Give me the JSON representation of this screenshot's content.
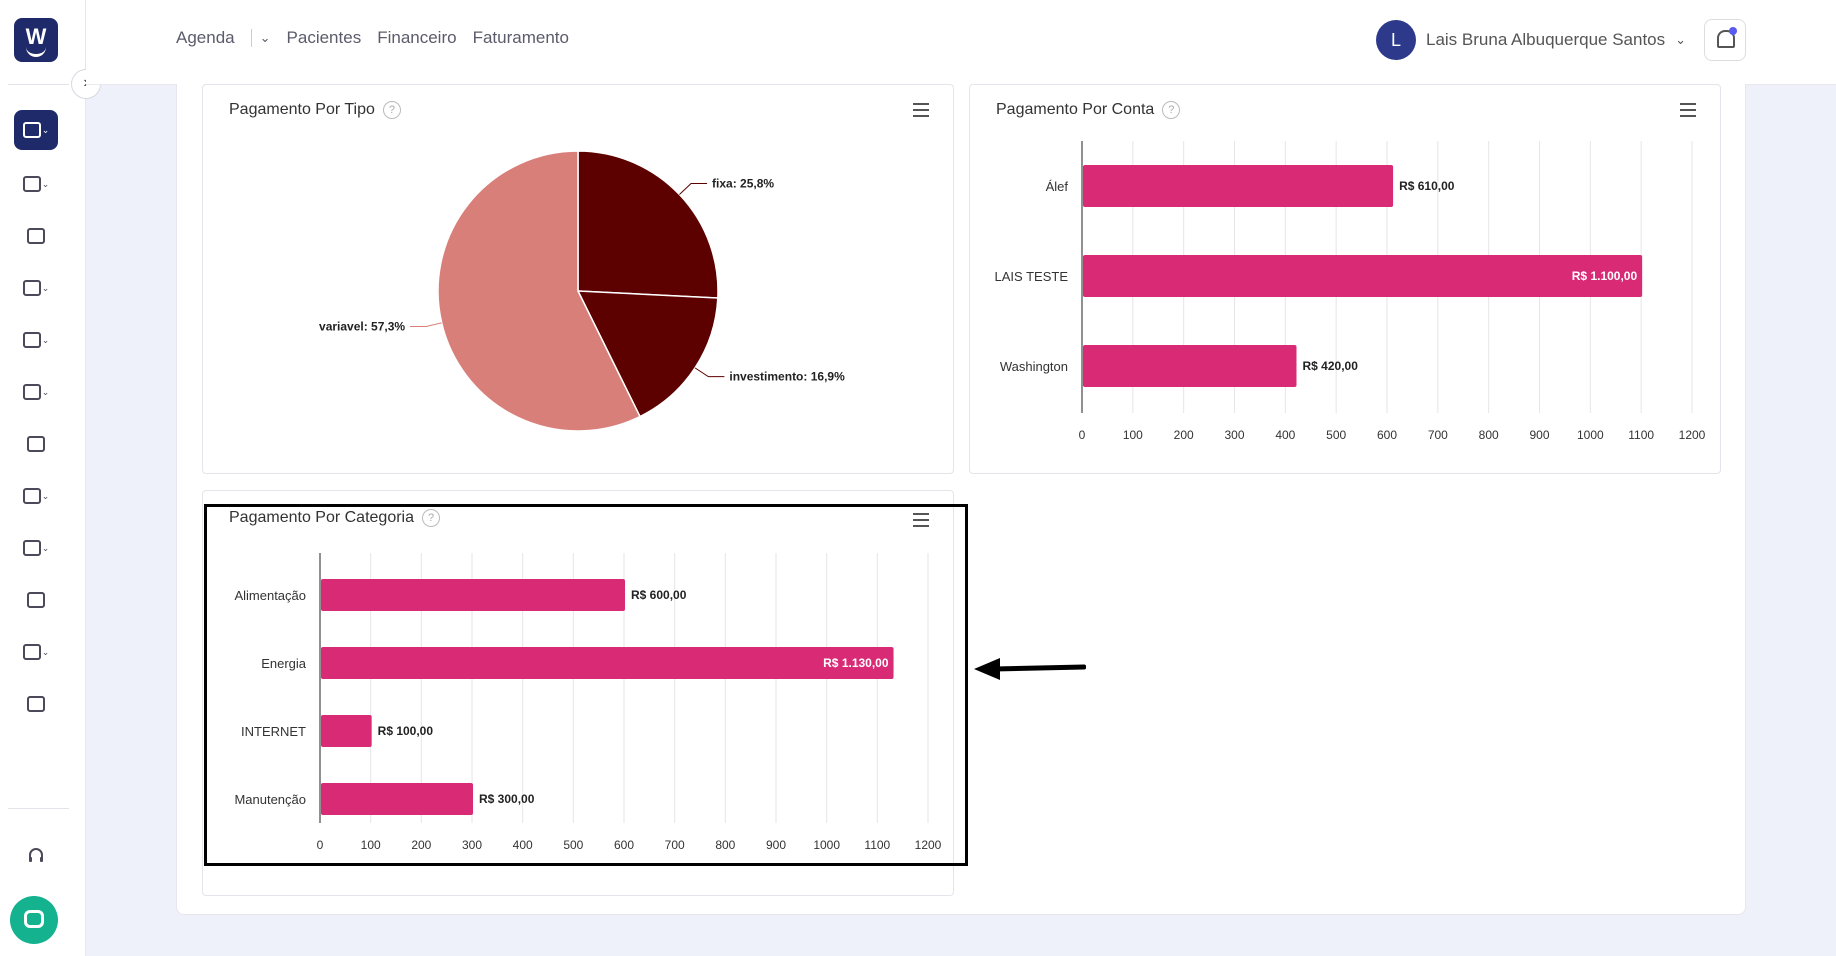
{
  "sidebar": {
    "logo": "W",
    "collapse": "›",
    "items": [
      {
        "icon": "ledger-icon",
        "chev": "⌄"
      },
      {
        "icon": "calendar-icon",
        "chev": "⌄"
      },
      {
        "icon": "patient-card-icon",
        "chev": ""
      },
      {
        "icon": "clinic-icon",
        "chev": "⌄"
      },
      {
        "icon": "documents-icon",
        "chev": "⌄"
      },
      {
        "icon": "handshake-icon",
        "chev": "⌄"
      },
      {
        "icon": "dollar-icon",
        "chev": ""
      },
      {
        "icon": "monitor-icon",
        "chev": "⌄"
      },
      {
        "icon": "megaphone-icon",
        "chev": "⌄"
      },
      {
        "icon": "newspaper-icon",
        "chev": ""
      },
      {
        "icon": "box-icon",
        "chev": "⌄"
      },
      {
        "icon": "users-icon",
        "chev": ""
      }
    ],
    "support_icon": "headset-icon"
  },
  "topbar": {
    "menu": [
      "Agenda",
      "Pacientes",
      "Financeiro",
      "Faturamento"
    ],
    "user_initial": "L",
    "user_name": "Lais Bruna Albuquerque Santos"
  },
  "cards": {
    "tipo": {
      "title": "Pagamento Por Tipo"
    },
    "conta": {
      "title": "Pagamento Por Conta"
    },
    "categoria": {
      "title": "Pagamento Por Categoria"
    }
  },
  "chart_data": [
    {
      "type": "pie",
      "title": "Pagamento Por Tipo",
      "slices": [
        {
          "label": "fixa",
          "value": 25.8,
          "display": "fixa: 25,8%",
          "color": "#5c0000"
        },
        {
          "label": "investimento",
          "value": 16.9,
          "display": "investimento: 16,9%",
          "color": "#5c0000"
        },
        {
          "label": "variavel",
          "value": 57.3,
          "display": "variavel: 57,3%",
          "color": "#d97f7a"
        }
      ]
    },
    {
      "type": "bar",
      "orientation": "horizontal",
      "title": "Pagamento Por Conta",
      "categories": [
        "Álef",
        "LAIS TESTE",
        "Washington"
      ],
      "values": [
        610,
        1100,
        420
      ],
      "labels": [
        "R$ 610,00",
        "R$ 1.100,00",
        "R$ 420,00"
      ],
      "ticks": [
        "0",
        "100",
        "200",
        "300",
        "400",
        "500",
        "600",
        "700",
        "800",
        "900",
        "1000",
        "1100",
        "1200"
      ],
      "xlim": [
        0,
        1200
      ],
      "color": "#d92a76",
      "grid": true
    },
    {
      "type": "bar",
      "orientation": "horizontal",
      "title": "Pagamento Por Categoria",
      "categories": [
        "Alimentação",
        "Energia",
        "INTERNET",
        "Manutenção"
      ],
      "values": [
        600,
        1130,
        100,
        300
      ],
      "labels": [
        "R$ 600,00",
        "R$ 1.130,00",
        "R$ 100,00",
        "R$ 300,00"
      ],
      "ticks": [
        "0",
        "100",
        "200",
        "300",
        "400",
        "500",
        "600",
        "700",
        "800",
        "900",
        "1000",
        "1100",
        "1200"
      ],
      "xlim": [
        0,
        1200
      ],
      "color": "#d92a76",
      "grid": true
    }
  ]
}
